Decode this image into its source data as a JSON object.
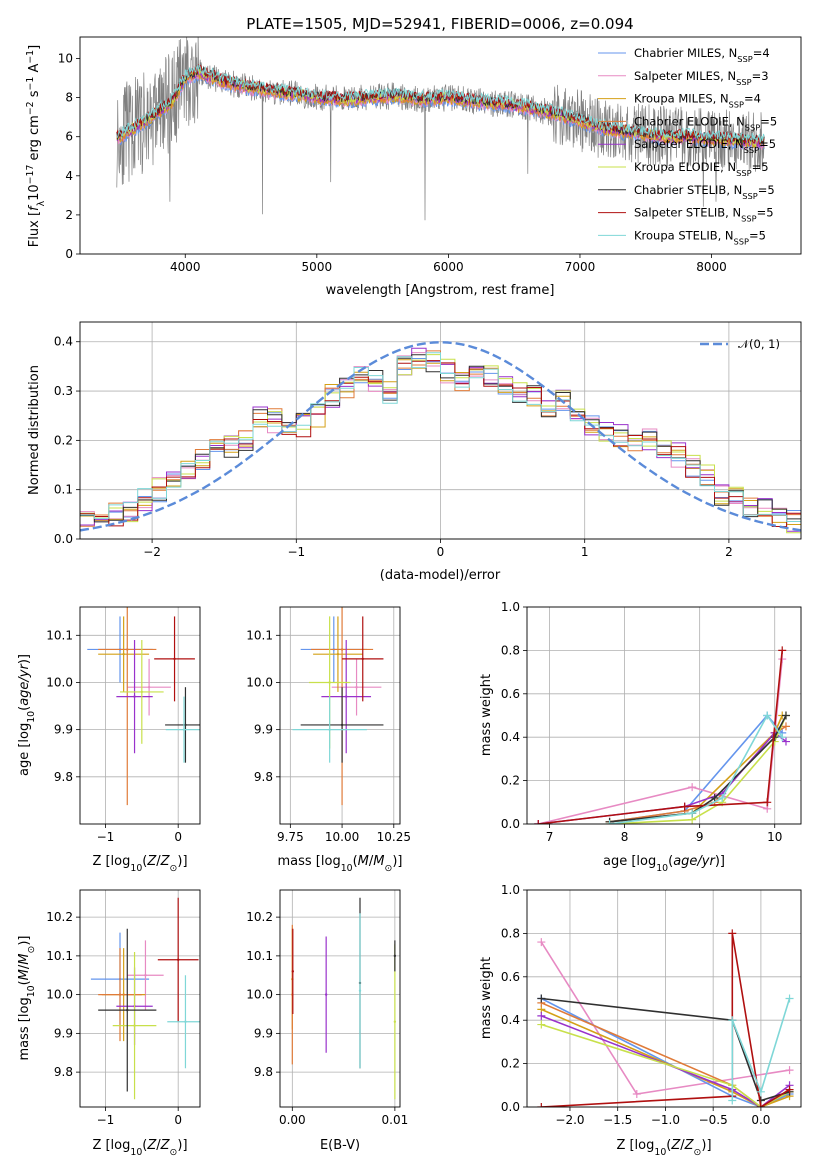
{
  "chart_data": [
    {
      "type": "line",
      "id": "spectrum",
      "title": "PLATE=1505, MJD=52941, FIBERID=0006, z=0.094",
      "xlabel": "wavelength [Angstrom, rest frame]",
      "ylabel": "Flux [f_λ10^-17 erg cm^-2 s^-1 A^-1]",
      "xlim": [
        3200,
        8680
      ],
      "ylim": [
        0,
        11.1
      ],
      "xticks": [
        4000,
        5000,
        6000,
        7000,
        8000
      ],
      "yticks": [
        0,
        2,
        4,
        6,
        8,
        10
      ],
      "grid": false,
      "legend_position": "top-right",
      "data_series": {
        "name": "data",
        "color": "#808080"
      },
      "series": [
        {
          "name": "Chabrier MILES, N_SSP=4",
          "color": "#6495ed"
        },
        {
          "name": "Salpeter MILES, N_SSP=3",
          "color": "#e78ac3"
        },
        {
          "name": "Kroupa MILES, N_SSP=4",
          "color": "#d4a017"
        },
        {
          "name": "Chabrier ELODIE, N_SSP=5",
          "color": "#e07b39"
        },
        {
          "name": "Salpeter ELODIE, N_SSP=5",
          "color": "#9932cc"
        },
        {
          "name": "Kroupa ELODIE, N_SSP=5",
          "color": "#c8e04b"
        },
        {
          "name": "Chabrier STELIB, N_SSP=5",
          "color": "#303030"
        },
        {
          "name": "Salpeter STELIB, N_SSP=5",
          "color": "#b01010"
        },
        {
          "name": "Kroupa STELIB, N_SSP=5",
          "color": "#7fd7d7"
        }
      ],
      "continuum": {
        "wavelength": [
          3500,
          3700,
          3900,
          4000,
          4100,
          4300,
          4500,
          4700,
          5000,
          5200,
          5400,
          5600,
          5800,
          6000,
          6200,
          6400,
          6600,
          6800,
          7000,
          7200,
          7400,
          7600,
          7800,
          8000,
          8200,
          8400
        ],
        "flux": [
          6.0,
          6.8,
          7.8,
          9.0,
          9.3,
          8.8,
          8.5,
          8.3,
          8.0,
          7.9,
          8.0,
          8.1,
          7.9,
          8.0,
          7.8,
          7.7,
          7.5,
          7.2,
          6.8,
          6.4,
          6.2,
          6.0,
          6.0,
          5.9,
          5.8,
          5.7
        ]
      }
    },
    {
      "type": "histogram",
      "id": "residuals",
      "xlabel": "(data-model)/error",
      "ylabel": "Normed distribution",
      "xlim": [
        -2.5,
        2.5
      ],
      "ylim": [
        0,
        0.44
      ],
      "xticks": [
        -2,
        -1,
        0,
        1,
        2
      ],
      "yticks": [
        0.0,
        0.1,
        0.2,
        0.3,
        0.4
      ],
      "grid": true,
      "legend_position": "top-right",
      "legend": "𝒩(0, 1)",
      "reference_curve": {
        "name": "N(0,1)",
        "mean": 0,
        "sigma": 1,
        "color": "#5b8bd9",
        "style": "dashed"
      },
      "bin_edges": [
        -2.5,
        -2.4,
        -2.3,
        -2.2,
        -2.1,
        -2.0,
        -1.9,
        -1.8,
        -1.7,
        -1.6,
        -1.5,
        -1.4,
        -1.3,
        -1.2,
        -1.1,
        -1.0,
        -0.9,
        -0.8,
        -0.7,
        -0.6,
        -0.5,
        -0.4,
        -0.3,
        -0.2,
        -0.1,
        0.0,
        0.1,
        0.2,
        0.3,
        0.4,
        0.5,
        0.6,
        0.7,
        0.8,
        0.9,
        1.0,
        1.1,
        1.2,
        1.3,
        1.4,
        1.5,
        1.6,
        1.7,
        1.8,
        1.9,
        2.0,
        2.1,
        2.2,
        2.3,
        2.4,
        2.5
      ],
      "mean_density": [
        0.04,
        0.045,
        0.05,
        0.06,
        0.08,
        0.1,
        0.12,
        0.14,
        0.16,
        0.18,
        0.19,
        0.2,
        0.25,
        0.24,
        0.22,
        0.23,
        0.25,
        0.29,
        0.31,
        0.34,
        0.32,
        0.3,
        0.35,
        0.37,
        0.36,
        0.34,
        0.32,
        0.35,
        0.33,
        0.31,
        0.3,
        0.29,
        0.26,
        0.28,
        0.24,
        0.23,
        0.22,
        0.21,
        0.19,
        0.2,
        0.18,
        0.17,
        0.15,
        0.13,
        0.09,
        0.08,
        0.07,
        0.06,
        0.05,
        0.035
      ],
      "series_colors": [
        "#6495ed",
        "#e78ac3",
        "#d4a017",
        "#e07b39",
        "#9932cc",
        "#c8e04b",
        "#303030",
        "#b01010",
        "#7fd7d7"
      ]
    },
    {
      "type": "scatter",
      "id": "z_vs_age",
      "xlabel": "Z [log10(Z/Z⊙)]",
      "ylabel": "age  [log10(age/yr)]",
      "xlim": [
        -1.35,
        0.3
      ],
      "ylim": [
        9.7,
        10.16
      ],
      "xticks": [
        -1,
        0
      ],
      "yticks": [
        9.8,
        9.9,
        10.0,
        10.1
      ],
      "grid": true,
      "points": [
        {
          "x": -0.8,
          "y": 10.07,
          "xerr": 0.45,
          "yerr": 0.07,
          "color": "#6495ed"
        },
        {
          "x": -0.4,
          "y": 9.99,
          "xerr": 0.3,
          "yerr": 0.06,
          "color": "#e78ac3"
        },
        {
          "x": -0.75,
          "y": 10.06,
          "xerr": 0.35,
          "yerr": 0.08,
          "color": "#d4a017"
        },
        {
          "x": -0.7,
          "y": 10.07,
          "xerr": 0.4,
          "yerr": 0.33,
          "color": "#e07b39"
        },
        {
          "x": -0.6,
          "y": 9.97,
          "xerr": 0.25,
          "yerr": 0.12,
          "color": "#9932cc"
        },
        {
          "x": -0.5,
          "y": 9.98,
          "xerr": 0.3,
          "yerr": 0.11,
          "color": "#c8e04b"
        },
        {
          "x": 0.1,
          "y": 9.91,
          "xerr": 0.28,
          "yerr": 0.08,
          "color": "#303030"
        },
        {
          "x": -0.05,
          "y": 10.05,
          "xerr": 0.28,
          "yerr": 0.09,
          "color": "#b01010"
        },
        {
          "x": 0.08,
          "y": 9.9,
          "xerr": 0.25,
          "yerr": 0.07,
          "color": "#7fd7d7"
        }
      ]
    },
    {
      "type": "scatter",
      "id": "mass_vs_age",
      "xlabel": "mass [log10(M/M⊙)]",
      "ylabel": "",
      "xlim": [
        9.7,
        10.28
      ],
      "ylim": [
        9.7,
        10.16
      ],
      "xticks": [
        9.75,
        10.0,
        10.25
      ],
      "yticks": [
        9.8,
        9.9,
        10.0,
        10.1
      ],
      "grid": true,
      "points": [
        {
          "x": 9.96,
          "y": 10.07,
          "xerr": 0.16,
          "yerr": 0.07,
          "color": "#6495ed"
        },
        {
          "x": 10.07,
          "y": 9.99,
          "xerr": 0.12,
          "yerr": 0.06,
          "color": "#e78ac3"
        },
        {
          "x": 9.98,
          "y": 10.06,
          "xerr": 0.12,
          "yerr": 0.08,
          "color": "#d4a017"
        },
        {
          "x": 10.0,
          "y": 10.07,
          "xerr": 0.15,
          "yerr": 0.33,
          "color": "#e07b39"
        },
        {
          "x": 10.02,
          "y": 9.97,
          "xerr": 0.12,
          "yerr": 0.12,
          "color": "#9932cc"
        },
        {
          "x": 9.94,
          "y": 10.0,
          "xerr": 0.1,
          "yerr": 0.14,
          "color": "#c8e04b"
        },
        {
          "x": 10.0,
          "y": 9.91,
          "xerr": 0.2,
          "yerr": 0.08,
          "color": "#303030"
        },
        {
          "x": 10.1,
          "y": 10.05,
          "xerr": 0.1,
          "yerr": 0.09,
          "color": "#b01010"
        },
        {
          "x": 9.94,
          "y": 9.9,
          "xerr": 0.18,
          "yerr": 0.07,
          "color": "#7fd7d7"
        }
      ]
    },
    {
      "type": "line",
      "id": "age_vs_weight",
      "xlabel": "age  [log10(age/yr)]",
      "ylabel": "mass weight",
      "xlim": [
        6.7,
        10.35
      ],
      "ylim": [
        0,
        1.0
      ],
      "xticks": [
        7,
        8,
        9,
        10
      ],
      "yticks": [
        0.0,
        0.2,
        0.4,
        0.6,
        0.8,
        1.0
      ],
      "grid": true,
      "series": [
        {
          "color": "#6495ed",
          "x": [
            7.8,
            8.8,
            9.9,
            10.1
          ],
          "y": [
            0.01,
            0.06,
            0.5,
            0.42
          ]
        },
        {
          "color": "#e78ac3",
          "x": [
            6.85,
            8.9,
            9.9,
            10.1
          ],
          "y": [
            0.0,
            0.17,
            0.07,
            0.76
          ]
        },
        {
          "color": "#d4a017",
          "x": [
            7.8,
            8.9,
            10.0,
            10.1
          ],
          "y": [
            0.01,
            0.05,
            0.42,
            0.5
          ]
        },
        {
          "color": "#e07b39",
          "x": [
            7.8,
            8.8,
            9.2,
            10.0,
            10.15
          ],
          "y": [
            0.01,
            0.06,
            0.1,
            0.42,
            0.45
          ]
        },
        {
          "color": "#9932cc",
          "x": [
            6.85,
            8.8,
            9.3,
            10.0,
            10.15
          ],
          "y": [
            0.0,
            0.08,
            0.14,
            0.42,
            0.38
          ]
        },
        {
          "color": "#c8e04b",
          "x": [
            7.8,
            8.9,
            9.3,
            10.0,
            10.15
          ],
          "y": [
            0.0,
            0.02,
            0.1,
            0.38,
            0.5
          ]
        },
        {
          "color": "#303030",
          "x": [
            7.8,
            8.9,
            9.2,
            10.0,
            10.15
          ],
          "y": [
            0.01,
            0.05,
            0.12,
            0.4,
            0.5
          ]
        },
        {
          "color": "#b01010",
          "x": [
            6.85,
            8.8,
            9.9,
            10.1
          ],
          "y": [
            0.0,
            0.08,
            0.1,
            0.8
          ]
        },
        {
          "color": "#7fd7d7",
          "x": [
            7.8,
            8.9,
            9.3,
            9.9,
            10.1
          ],
          "y": [
            0.0,
            0.05,
            0.12,
            0.5,
            0.4
          ]
        }
      ]
    },
    {
      "type": "scatter",
      "id": "z_vs_mass",
      "xlabel": "Z [log10(Z/Z⊙)]",
      "ylabel": "mass [log10(M/M⊙)]",
      "xlim": [
        -1.35,
        0.3
      ],
      "ylim": [
        9.71,
        10.27
      ],
      "xticks": [
        -1,
        0
      ],
      "yticks": [
        9.8,
        9.9,
        10.0,
        10.1,
        10.2
      ],
      "grid": true,
      "points": [
        {
          "x": -0.8,
          "y": 10.04,
          "xerr": 0.4,
          "yerr": 0.12,
          "color": "#6495ed"
        },
        {
          "x": -0.45,
          "y": 10.05,
          "xerr": 0.25,
          "yerr": 0.09,
          "color": "#e78ac3"
        },
        {
          "x": -0.75,
          "y": 10.0,
          "xerr": 0.3,
          "yerr": 0.12,
          "color": "#d4a017"
        },
        {
          "x": -0.8,
          "y": 10.0,
          "xerr": 0.3,
          "yerr": 0.12,
          "color": "#e07b39"
        },
        {
          "x": -0.6,
          "y": 9.97,
          "xerr": 0.25,
          "yerr": 0.1,
          "color": "#9932cc"
        },
        {
          "x": -0.6,
          "y": 9.92,
          "xerr": 0.3,
          "yerr": 0.19,
          "color": "#c8e04b"
        },
        {
          "x": -0.7,
          "y": 9.96,
          "xerr": 0.4,
          "yerr": 0.21,
          "color": "#303030"
        },
        {
          "x": 0.0,
          "y": 10.09,
          "xerr": 0.28,
          "yerr": 0.16,
          "color": "#b01010"
        },
        {
          "x": 0.1,
          "y": 9.93,
          "xerr": 0.25,
          "yerr": 0.12,
          "color": "#7fd7d7"
        }
      ]
    },
    {
      "type": "scatter",
      "id": "ebv_vs_mass",
      "xlabel": "E(B-V)",
      "ylabel": "",
      "xlim": [
        -0.0012,
        0.0105
      ],
      "ylim": [
        9.71,
        10.27
      ],
      "xticks": [
        0.0,
        0.01
      ],
      "xticklabels": [
        "0.00",
        "0.01"
      ],
      "yticks": [
        9.8,
        9.9,
        10.0,
        10.1,
        10.2
      ],
      "grid": true,
      "points": [
        {
          "x": 0.0,
          "y": 10.04,
          "yerr": 0.13,
          "color": "#d4a017"
        },
        {
          "x": 0.0,
          "y": 10.0,
          "yerr": 0.18,
          "color": "#e07b39"
        },
        {
          "x": 5e-05,
          "y": 10.06,
          "yerr": 0.11,
          "color": "#b01010"
        },
        {
          "x": 0.0033,
          "y": 10.0,
          "yerr": 0.15,
          "color": "#9932cc"
        },
        {
          "x": 0.0066,
          "y": 10.03,
          "yerr": 0.22,
          "color": "#303030"
        },
        {
          "x": 0.0066,
          "y": 10.01,
          "yerr": 0.2,
          "color": "#7fd7d7"
        },
        {
          "x": 0.01,
          "y": 9.93,
          "yerr": 0.2,
          "color": "#c8e04b"
        },
        {
          "x": 0.01,
          "y": 10.1,
          "yerr": 0.04,
          "color": "#303030"
        }
      ]
    },
    {
      "type": "line",
      "id": "z_vs_weight",
      "xlabel": "Z [log10(Z/Z⊙)]",
      "ylabel": "mass weight",
      "xlim": [
        -2.45,
        0.42
      ],
      "ylim": [
        0,
        1.0
      ],
      "xticks": [
        -2.0,
        -1.5,
        -1.0,
        -0.5,
        0.0
      ],
      "yticks": [
        0.0,
        0.2,
        0.4,
        0.6,
        0.8,
        1.0
      ],
      "grid": true,
      "series": [
        {
          "color": "#e78ac3",
          "x": [
            -2.3,
            -1.3,
            0.3
          ],
          "y": [
            0.76,
            0.06,
            0.17
          ]
        },
        {
          "color": "#6495ed",
          "x": [
            -2.3,
            -0.3,
            0.0,
            0.3
          ],
          "y": [
            0.5,
            0.05,
            0.0,
            0.06
          ]
        },
        {
          "color": "#d4a017",
          "x": [
            -2.3,
            -0.3,
            0.0,
            0.3
          ],
          "y": [
            0.45,
            0.07,
            0.0,
            0.05
          ]
        },
        {
          "color": "#e07b39",
          "x": [
            -2.3,
            -0.3,
            0.0,
            0.3
          ],
          "y": [
            0.48,
            0.1,
            0.0,
            0.07
          ]
        },
        {
          "color": "#9932cc",
          "x": [
            -2.3,
            -0.3,
            0.0,
            0.3
          ],
          "y": [
            0.42,
            0.08,
            0.0,
            0.1
          ]
        },
        {
          "color": "#c8e04b",
          "x": [
            -2.3,
            -0.3,
            0.0,
            0.3
          ],
          "y": [
            0.38,
            0.1,
            0.0,
            0.07
          ]
        },
        {
          "color": "#303030",
          "x": [
            -2.3,
            -0.3,
            0.0,
            0.3
          ],
          "y": [
            0.5,
            0.4,
            0.03,
            0.07
          ]
        },
        {
          "color": "#b01010",
          "x": [
            -2.3,
            -0.3,
            -0.3,
            0.0,
            0.3
          ],
          "y": [
            0.0,
            0.05,
            0.8,
            0.0,
            0.08
          ]
        },
        {
          "color": "#7fd7d7",
          "x": [
            -0.3,
            -0.3,
            0.0,
            0.3
          ],
          "y": [
            0.03,
            0.4,
            0.07,
            0.5
          ]
        }
      ]
    }
  ]
}
